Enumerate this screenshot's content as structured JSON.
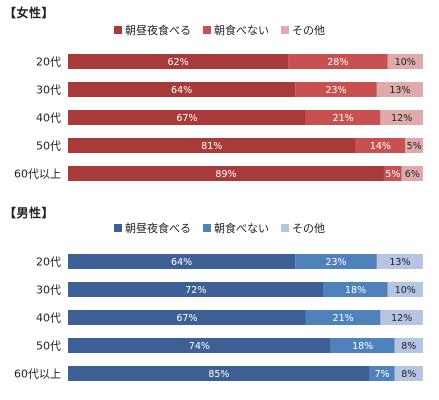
{
  "chart_data": [
    {
      "type": "bar",
      "orientation": "horizontal",
      "stacked": true,
      "percent": true,
      "title": "【女性】",
      "categories": [
        "20代",
        "30代",
        "40代",
        "50代",
        "60代以上"
      ],
      "series": [
        {
          "name": "朝昼夜食べる",
          "values": [
            62,
            64,
            67,
            81,
            89
          ],
          "color": "#a83a3a"
        },
        {
          "name": "朝食べない",
          "values": [
            28,
            23,
            21,
            14,
            5
          ],
          "color": "#c95050"
        },
        {
          "name": "その他",
          "values": [
            10,
            13,
            12,
            5,
            6
          ],
          "color": "#e0aaaa"
        }
      ],
      "value_format": "{v}%",
      "legend_position": "top"
    },
    {
      "type": "bar",
      "orientation": "horizontal",
      "stacked": true,
      "percent": true,
      "title": "【男性】",
      "categories": [
        "20代",
        "30代",
        "40代",
        "50代",
        "60代以上"
      ],
      "series": [
        {
          "name": "朝昼夜食べる",
          "values": [
            64,
            72,
            67,
            74,
            85
          ],
          "color": "#3c6096"
        },
        {
          "name": "朝食べない",
          "values": [
            23,
            18,
            21,
            18,
            7
          ],
          "color": "#4f81bd"
        },
        {
          "name": "その他",
          "values": [
            13,
            10,
            12,
            8,
            8
          ],
          "color": "#b4c6e4"
        }
      ],
      "value_format": "{v}%",
      "legend_position": "top"
    }
  ]
}
